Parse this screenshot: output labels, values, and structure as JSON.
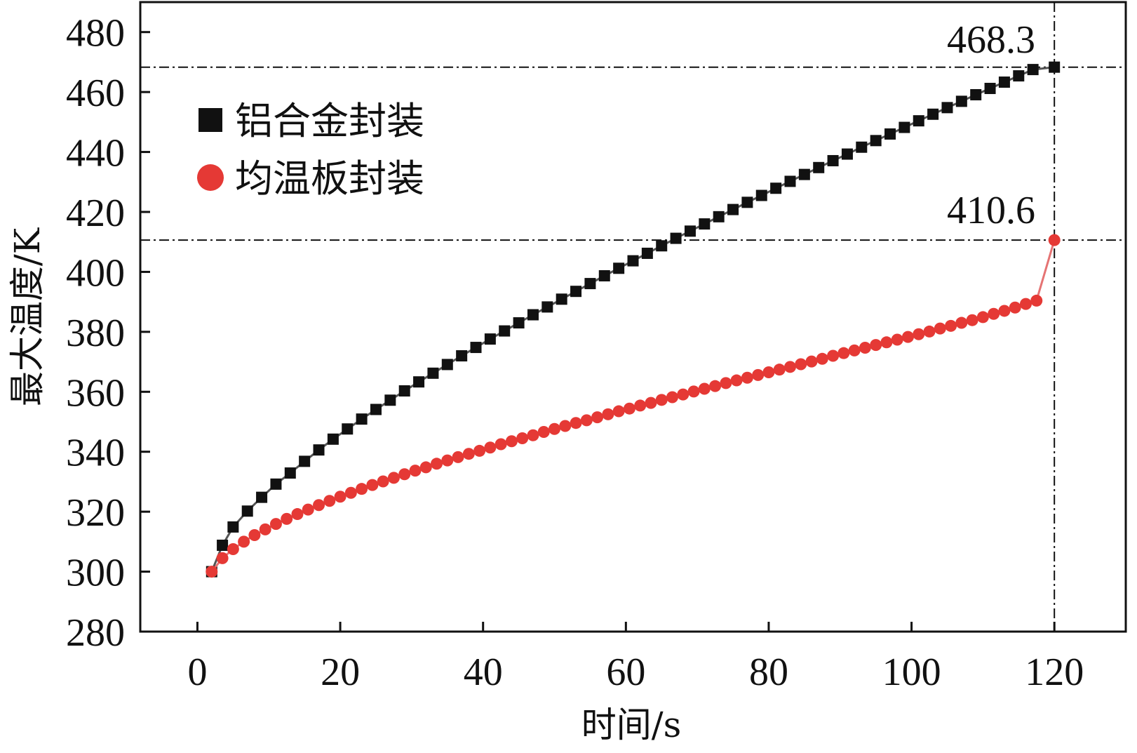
{
  "chart_data": {
    "type": "line",
    "title": "",
    "xlabel": "时间/s",
    "ylabel": "最大温度/K",
    "xlim": [
      -8,
      130
    ],
    "ylim": [
      280,
      490
    ],
    "xticks": [
      0,
      20,
      40,
      60,
      80,
      100,
      120
    ],
    "yticks": [
      280,
      300,
      320,
      340,
      360,
      380,
      400,
      420,
      440,
      460,
      480
    ],
    "grid": false,
    "legend_position": "top-left",
    "series": [
      {
        "name": "铝合金封装",
        "marker": "square",
        "color": "#111111",
        "x": [
          2,
          3.5,
          5,
          7,
          9,
          11,
          13,
          15,
          17,
          19,
          21,
          23,
          25,
          27,
          29,
          31,
          33,
          35,
          37,
          39,
          41,
          43,
          45,
          47,
          49,
          51,
          53,
          55,
          57,
          59,
          61,
          63,
          65,
          67,
          69,
          71,
          73,
          75,
          77,
          79,
          81,
          83,
          85,
          87,
          89,
          91,
          93,
          95,
          97,
          99,
          101,
          103,
          105,
          107,
          109,
          111,
          113,
          115,
          117,
          120
        ],
        "values": [
          300,
          308.8,
          314.9,
          320.2,
          324.8,
          329.2,
          332.9,
          336.8,
          340.6,
          344.2,
          347.6,
          350.9,
          354.1,
          357.2,
          360.3,
          363.3,
          366.2,
          369.1,
          372.0,
          374.8,
          377.6,
          380.3,
          383.0,
          385.7,
          388.3,
          390.9,
          393.5,
          396.1,
          398.7,
          401.2,
          403.7,
          406.2,
          408.7,
          411.2,
          413.6,
          416.0,
          418.4,
          420.8,
          423.2,
          425.5,
          427.9,
          430.2,
          432.5,
          434.8,
          437.1,
          439.3,
          441.6,
          443.8,
          446.0,
          448.2,
          450.4,
          452.6,
          454.8,
          456.9,
          459.1,
          461.2,
          463.3,
          465.4,
          467.5,
          468.3
        ]
      },
      {
        "name": "均温板封装",
        "marker": "circle",
        "color": "#e53935",
        "x": [
          2,
          3.5,
          5,
          6.5,
          8,
          9.5,
          11,
          12.5,
          14,
          15.5,
          17,
          18.5,
          20,
          21.5,
          23,
          24.5,
          26,
          27.5,
          29,
          30.5,
          32,
          33.5,
          35,
          36.5,
          38,
          39.5,
          41,
          42.5,
          44,
          45.5,
          47,
          48.5,
          50,
          51.5,
          53,
          54.5,
          56,
          57.5,
          59,
          60.5,
          62,
          63.5,
          65,
          66.5,
          68,
          69.5,
          71,
          72.5,
          74,
          75.5,
          77,
          78.5,
          80,
          81.5,
          83,
          84.5,
          86,
          87.5,
          89,
          90.5,
          92,
          93.5,
          95,
          96.5,
          98,
          99.5,
          101,
          102.5,
          104,
          105.5,
          107,
          108.5,
          110,
          111.5,
          113,
          114.5,
          116,
          117.5,
          120
        ],
        "values": [
          300,
          304.5,
          307.5,
          310.0,
          312.2,
          314.1,
          315.9,
          317.6,
          319.2,
          320.7,
          322.2,
          323.6,
          325.0,
          326.3,
          327.6,
          328.9,
          330.1,
          331.3,
          332.5,
          333.7,
          334.8,
          336.0,
          337.1,
          338.2,
          339.3,
          340.3,
          341.4,
          342.5,
          343.5,
          344.5,
          345.5,
          346.6,
          347.6,
          348.6,
          349.6,
          350.5,
          351.5,
          352.5,
          353.5,
          354.4,
          355.4,
          356.3,
          357.3,
          358.2,
          359.1,
          360.1,
          361.0,
          361.9,
          362.9,
          363.8,
          364.7,
          365.6,
          366.5,
          367.4,
          368.3,
          369.2,
          370.1,
          371.0,
          372.0,
          372.9,
          373.8,
          374.7,
          375.6,
          376.5,
          377.4,
          378.3,
          379.2,
          380.1,
          381.1,
          382.0,
          383.0,
          383.9,
          384.9,
          386.0,
          387.0,
          388.1,
          389.3,
          390.4,
          410.6
        ]
      }
    ],
    "annotations": [
      {
        "label": "468.3",
        "y": 468.3
      },
      {
        "label": "410.6",
        "y": 410.6
      }
    ],
    "reference_lines": [
      {
        "orientation": "horizontal",
        "value": 468.3
      },
      {
        "orientation": "horizontal",
        "value": 410.6
      },
      {
        "orientation": "vertical",
        "value": 120
      }
    ]
  }
}
